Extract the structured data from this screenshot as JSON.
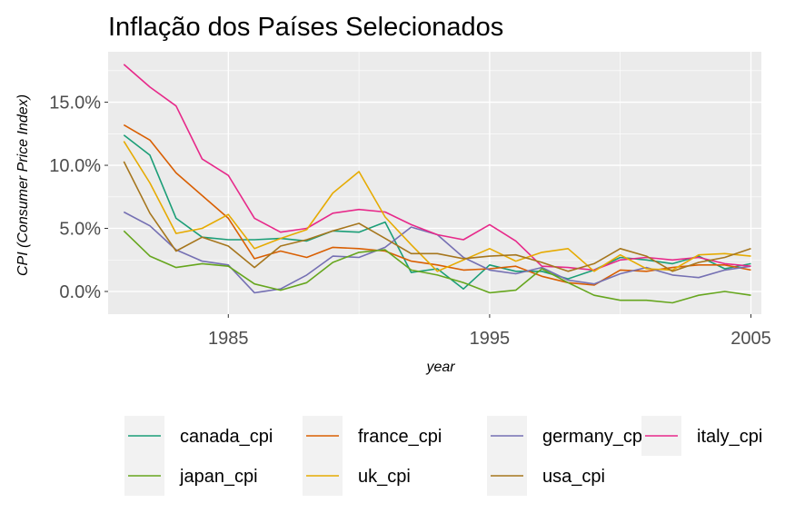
{
  "chart_data": {
    "type": "line",
    "title": "Inflação dos Países Selecionados",
    "xlabel": "year",
    "ylabel": "CPI (Consumer Price Index)",
    "x_ticks": [
      "1985",
      "1995",
      "2005"
    ],
    "y_ticks": [
      "0.0%",
      "5.0%",
      "10.0%",
      "15.0%"
    ],
    "xlim": [
      1980.4,
      2005.4
    ],
    "ylim": [
      -0.018,
      0.19
    ],
    "grid": true,
    "legend_position": "bottom",
    "x": [
      1981,
      1982,
      1983,
      1984,
      1985,
      1986,
      1987,
      1988,
      1989,
      1990,
      1991,
      1992,
      1993,
      1994,
      1995,
      1996,
      1997,
      1998,
      1999,
      2000,
      2001,
      2002,
      2003,
      2004,
      2005
    ],
    "series": [
      {
        "name": "canada_cpi",
        "color": "#1B9E77",
        "values": [
          0.124,
          0.108,
          0.058,
          0.043,
          0.041,
          0.041,
          0.042,
          0.04,
          0.048,
          0.047,
          0.055,
          0.015,
          0.018,
          0.002,
          0.021,
          0.016,
          0.016,
          0.01,
          0.017,
          0.027,
          0.025,
          0.022,
          0.028,
          0.018,
          0.022
        ]
      },
      {
        "name": "france_cpi",
        "color": "#D95F02",
        "values": [
          0.132,
          0.12,
          0.094,
          0.076,
          0.058,
          0.026,
          0.032,
          0.027,
          0.035,
          0.034,
          0.032,
          0.024,
          0.021,
          0.017,
          0.018,
          0.02,
          0.012,
          0.007,
          0.005,
          0.017,
          0.016,
          0.019,
          0.021,
          0.021,
          0.017
        ]
      },
      {
        "name": "germany_cpi",
        "color": "#7570B3",
        "values": [
          0.063,
          0.052,
          0.033,
          0.024,
          0.021,
          -0.001,
          0.002,
          0.013,
          0.028,
          0.027,
          0.035,
          0.051,
          0.045,
          0.027,
          0.017,
          0.014,
          0.019,
          0.009,
          0.006,
          0.014,
          0.019,
          0.013,
          0.011,
          0.017,
          0.02
        ]
      },
      {
        "name": "italy_cpi",
        "color": "#E7298A",
        "values": [
          0.18,
          0.162,
          0.147,
          0.105,
          0.092,
          0.058,
          0.047,
          0.05,
          0.062,
          0.065,
          0.063,
          0.053,
          0.045,
          0.041,
          0.053,
          0.04,
          0.02,
          0.019,
          0.017,
          0.025,
          0.027,
          0.025,
          0.027,
          0.022,
          0.02
        ]
      },
      {
        "name": "japan_cpi",
        "color": "#66A61E",
        "values": [
          0.048,
          0.028,
          0.019,
          0.022,
          0.02,
          0.006,
          0.001,
          0.007,
          0.023,
          0.031,
          0.033,
          0.017,
          0.013,
          0.007,
          -0.001,
          0.001,
          0.018,
          0.007,
          -0.003,
          -0.007,
          -0.007,
          -0.009,
          -0.003,
          -0.0,
          -0.003
        ]
      },
      {
        "name": "uk_cpi",
        "color": "#E6AB02",
        "values": [
          0.119,
          0.086,
          0.046,
          0.05,
          0.061,
          0.034,
          0.042,
          0.049,
          0.078,
          0.095,
          0.059,
          0.037,
          0.016,
          0.025,
          0.034,
          0.024,
          0.031,
          0.034,
          0.016,
          0.029,
          0.018,
          0.017,
          0.029,
          0.03,
          0.028
        ]
      },
      {
        "name": "usa_cpi",
        "color": "#A6761D",
        "values": [
          0.103,
          0.062,
          0.032,
          0.043,
          0.036,
          0.019,
          0.036,
          0.041,
          0.048,
          0.054,
          0.042,
          0.03,
          0.03,
          0.026,
          0.028,
          0.029,
          0.023,
          0.016,
          0.022,
          0.034,
          0.028,
          0.016,
          0.023,
          0.027,
          0.034
        ]
      }
    ]
  }
}
